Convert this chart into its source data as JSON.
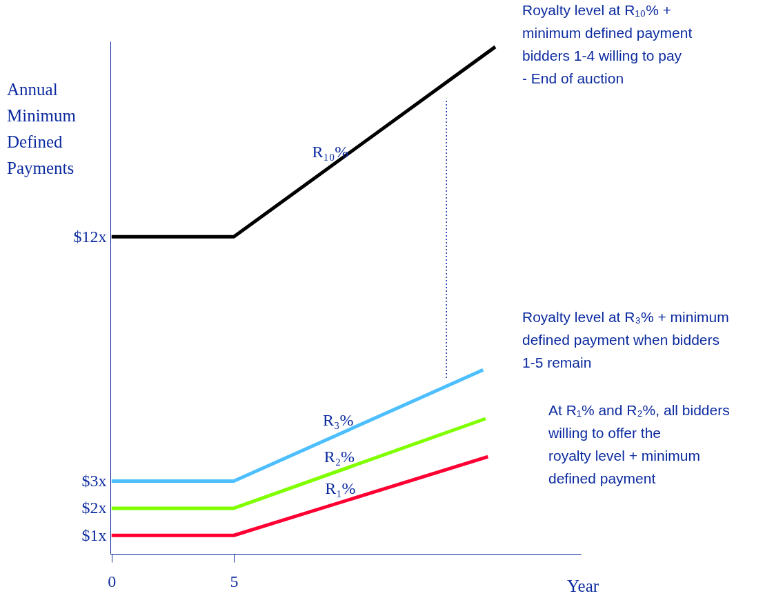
{
  "chart_data": {
    "type": "line",
    "xlabel": "Year",
    "ylabel": "Annual Minimum Defined Payments",
    "xlim": [
      -0.05,
      19.2
    ],
    "xticks": [
      0,
      5
    ],
    "ylim": [
      0.32,
      19.2
    ],
    "yticks": [
      {
        "value": 1,
        "label": "$1x"
      },
      {
        "value": 2,
        "label": "$2x"
      },
      {
        "value": 3,
        "label": "$3x"
      },
      {
        "value": 12,
        "label": "$12x"
      }
    ],
    "series": [
      {
        "name": "R₁%",
        "color": "#ff0033",
        "x": [
          0,
          5,
          15.4
        ],
        "values": [
          1,
          1,
          3.9
        ]
      },
      {
        "name": "R₂%",
        "color": "#80ff00",
        "x": [
          0,
          5,
          15.3
        ],
        "values": [
          2,
          2,
          5.3
        ]
      },
      {
        "name": "R₃%",
        "color": "#4dbfff",
        "x": [
          0,
          5,
          15.2
        ],
        "values": [
          3,
          3,
          7.1
        ]
      },
      {
        "name": "R₁₀%",
        "color": "#000000",
        "x": [
          0,
          5,
          15.7
        ],
        "values": [
          12,
          12,
          19.0
        ]
      },
      {
        "color": "#0b2a9f",
        "x": [
          13.7,
          13.7
        ],
        "values": [
          6.8,
          17.1
        ],
        "line_style": "dotted"
      }
    ],
    "annotations": [
      "Royalty level at R₁₀% + minimum defined payment bidders 1-4 willing to pay - End of auction",
      "Royalty level at R₃% + minimum defined payment when bidders 1-5 remain",
      "At R₁% and R₂%, all bidders willing to offer the royalty level + minimum defined payment"
    ],
    "marker": "none"
  }
}
